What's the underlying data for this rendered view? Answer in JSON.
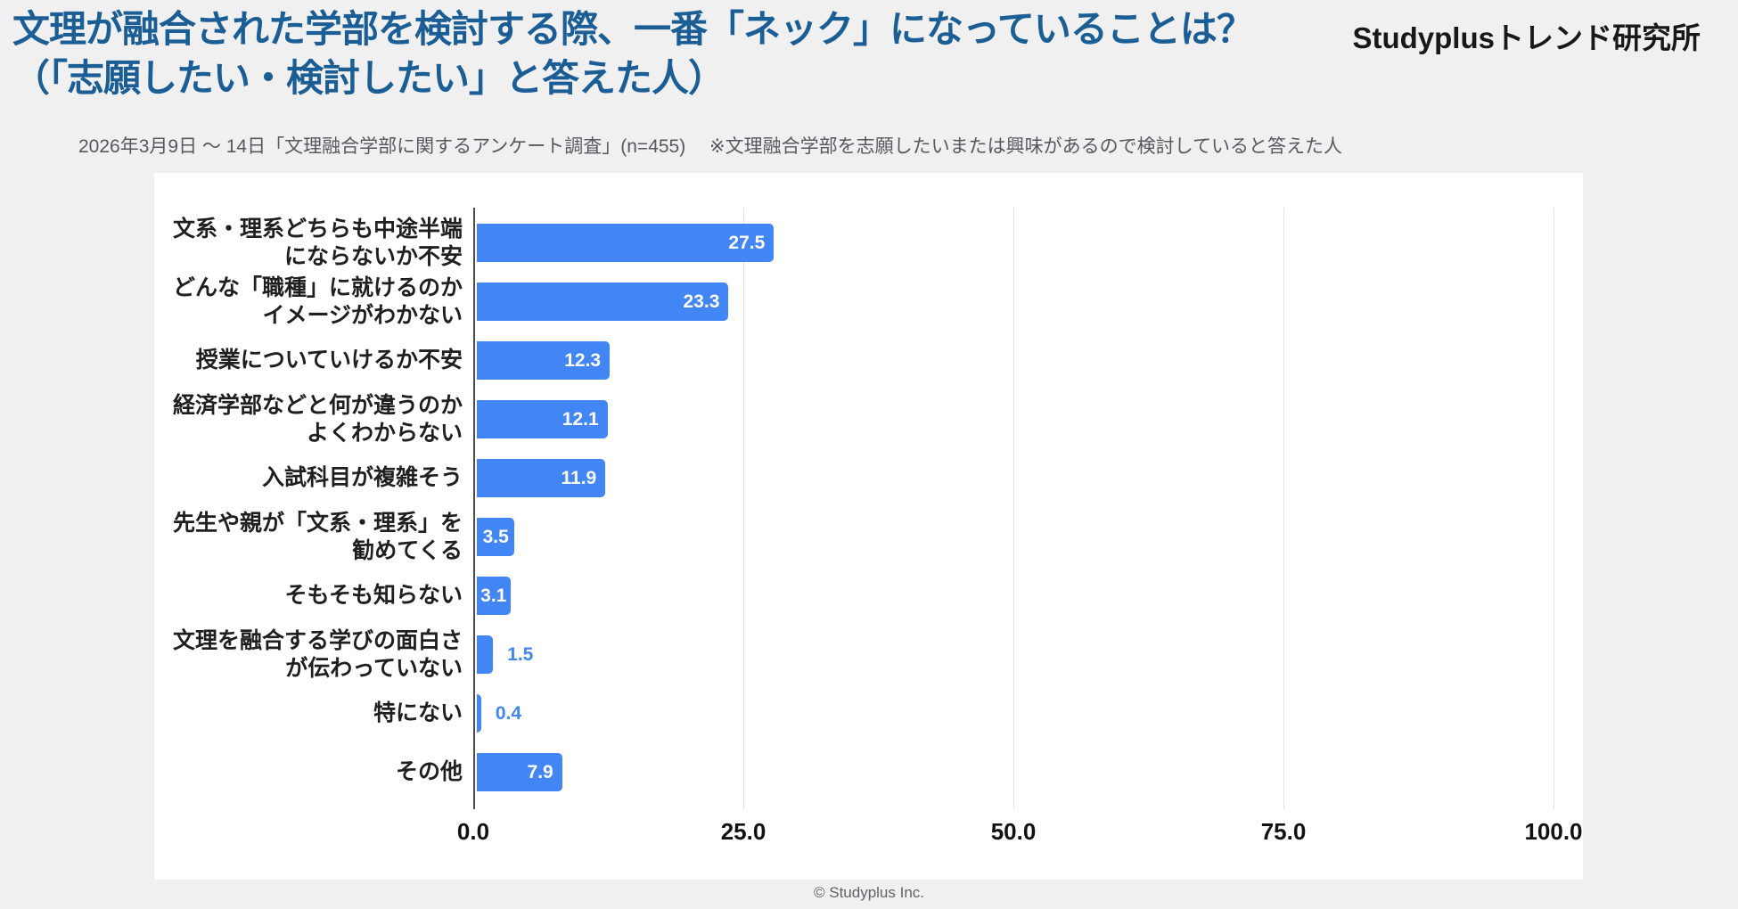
{
  "header": {
    "title_line1": "文理が融合された学部を検討する際、一番「ネック」になっていることは？",
    "title_line2": "（「志願したい・検討したい」と答えた人）",
    "logo": "Studyplusトレンド研究所",
    "subtitle": "2026年3月9日 ～ 14日「文理融合学部に関するアンケート調査」(n=455)　 ※文理融合学部を志願したいまたは興味があるので検討していると答えた人"
  },
  "footer": {
    "copyright": "© Studyplus Inc."
  },
  "colors": {
    "background": "#f0f0f1",
    "card": "#ffffff",
    "title_text": "#1b5e96",
    "bar": "#4285f4",
    "value_inside": "#ffffff",
    "value_outside": "#4285f4",
    "axis_line": "#4a4a4a",
    "gridline": "#e2e2e2",
    "category_label": "#1f1f1f",
    "tick_label": "#111111",
    "subtitle_text": "#55585e",
    "footer_text": "#5f6368"
  },
  "chart_data": {
    "type": "bar",
    "orientation": "horizontal",
    "unit": "%",
    "title": "",
    "xlabel": "",
    "ylabel": "",
    "xlim": [
      0,
      100
    ],
    "x_ticks": [
      "0.0",
      "25.0",
      "50.0",
      "75.0",
      "100.0"
    ],
    "grid": true,
    "legend": "none",
    "categories": [
      "文系・理系どちらも中途半端にならないか不安",
      "どんな「職種」に就けるのかイメージがわかない",
      "授業についていけるか不安",
      "経済学部などと何が違うのかよくわからない",
      "入試科目が複雑そう",
      "先生や親が「文系・理系」を勧めてくる",
      "そもそも知らない",
      "文理を融合する学びの面白さが伝わっていない",
      "特にない",
      "その他"
    ],
    "category_lines": [
      [
        "文系・理系どちらも中途半端",
        "にならないか不安"
      ],
      [
        "どんな「職種」に就けるのか",
        "イメージがわかない"
      ],
      [
        "授業についていけるか不安"
      ],
      [
        "経済学部などと何が違うのか",
        "よくわからない"
      ],
      [
        "入試科目が複雑そう"
      ],
      [
        "先生や親が「文系・理系」を",
        "勧めてくる"
      ],
      [
        "そもそも知らない"
      ],
      [
        "文理を融合する学びの面白さ",
        "が伝わっていない"
      ],
      [
        "特にない"
      ],
      [
        "その他"
      ]
    ],
    "values": [
      27.5,
      23.3,
      12.3,
      12.1,
      11.9,
      3.5,
      3.1,
      1.5,
      0.4,
      7.9
    ],
    "value_labels": [
      "27.5",
      "23.3",
      "12.3",
      "12.1",
      "11.9",
      "3.5",
      "3.1",
      "1.5",
      "0.4",
      "7.9"
    ]
  }
}
